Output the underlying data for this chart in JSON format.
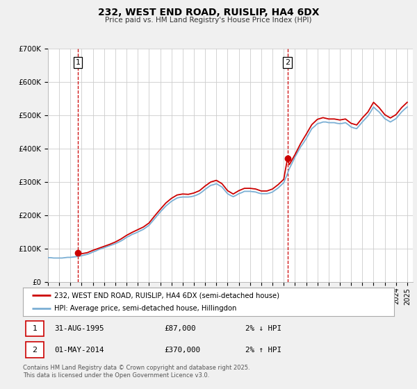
{
  "title": "232, WEST END ROAD, RUISLIP, HA4 6DX",
  "subtitle": "Price paid vs. HM Land Registry's House Price Index (HPI)",
  "legend_line1": "232, WEST END ROAD, RUISLIP, HA4 6DX (semi-detached house)",
  "legend_line2": "HPI: Average price, semi-detached house, Hillingdon",
  "footnote": "Contains HM Land Registry data © Crown copyright and database right 2025.\nThis data is licensed under the Open Government Licence v3.0.",
  "marker1_date": "31-AUG-1995",
  "marker1_price": "£87,000",
  "marker1_hpi": "2% ↓ HPI",
  "marker1_x": 1995.667,
  "marker1_y": 87000,
  "marker2_date": "01-MAY-2014",
  "marker2_price": "£370,000",
  "marker2_hpi": "2% ↑ HPI",
  "marker2_x": 2014.333,
  "marker2_y": 370000,
  "vline1_x": 1995.667,
  "vline2_x": 2014.333,
  "xmin": 1993.0,
  "xmax": 2025.5,
  "ymin": 0,
  "ymax": 700000,
  "yticks": [
    0,
    100000,
    200000,
    300000,
    400000,
    500000,
    600000,
    700000
  ],
  "ytick_labels": [
    "£0",
    "£100K",
    "£200K",
    "£300K",
    "£400K",
    "£500K",
    "£600K",
    "£700K"
  ],
  "property_color": "#cc0000",
  "hpi_color": "#7bafd4",
  "background_color": "#f0f0f0",
  "plot_bg_color": "#ffffff",
  "grid_color": "#cccccc",
  "vline_color": "#cc0000",
  "hpi_years": [
    1993.0,
    1993.25,
    1993.5,
    1993.75,
    1994.0,
    1994.25,
    1994.5,
    1994.75,
    1995.0,
    1995.25,
    1995.5,
    1995.75,
    1996.0,
    1996.25,
    1996.5,
    1996.75,
    1997.0,
    1997.25,
    1997.5,
    1997.75,
    1998.0,
    1998.25,
    1998.5,
    1998.75,
    1999.0,
    1999.25,
    1999.5,
    1999.75,
    2000.0,
    2000.25,
    2000.5,
    2000.75,
    2001.0,
    2001.25,
    2001.5,
    2001.75,
    2002.0,
    2002.25,
    2002.5,
    2002.75,
    2003.0,
    2003.25,
    2003.5,
    2003.75,
    2004.0,
    2004.25,
    2004.5,
    2004.75,
    2005.0,
    2005.25,
    2005.5,
    2005.75,
    2006.0,
    2006.25,
    2006.5,
    2006.75,
    2007.0,
    2007.25,
    2007.5,
    2007.75,
    2008.0,
    2008.25,
    2008.5,
    2008.75,
    2009.0,
    2009.25,
    2009.5,
    2009.75,
    2010.0,
    2010.25,
    2010.5,
    2010.75,
    2011.0,
    2011.25,
    2011.5,
    2011.75,
    2012.0,
    2012.25,
    2012.5,
    2012.75,
    2013.0,
    2013.25,
    2013.5,
    2013.75,
    2014.0,
    2014.25,
    2014.5,
    2014.75,
    2015.0,
    2015.25,
    2015.5,
    2015.75,
    2016.0,
    2016.25,
    2016.5,
    2016.75,
    2017.0,
    2017.25,
    2017.5,
    2017.75,
    2018.0,
    2018.25,
    2018.5,
    2018.75,
    2019.0,
    2019.25,
    2019.5,
    2019.75,
    2020.0,
    2020.25,
    2020.5,
    2020.75,
    2021.0,
    2021.25,
    2021.5,
    2021.75,
    2022.0,
    2022.25,
    2022.5,
    2022.75,
    2023.0,
    2023.25,
    2023.5,
    2023.75,
    2024.0,
    2024.25,
    2024.5,
    2024.75,
    2025.0
  ],
  "hpi_values": [
    73000,
    73000,
    72000,
    72000,
    72000,
    72000,
    73000,
    74000,
    74000,
    75000,
    76000,
    77000,
    79000,
    81000,
    83000,
    86000,
    90000,
    93000,
    97000,
    100000,
    103000,
    106000,
    109000,
    112000,
    115000,
    119000,
    123000,
    128000,
    134000,
    138000,
    143000,
    146000,
    150000,
    154000,
    158000,
    164000,
    170000,
    180000,
    190000,
    200000,
    210000,
    219000,
    228000,
    235000,
    242000,
    247000,
    252000,
    254000,
    255000,
    255000,
    255000,
    256000,
    258000,
    261000,
    265000,
    271000,
    278000,
    284000,
    290000,
    292000,
    295000,
    290000,
    285000,
    275000,
    265000,
    260000,
    256000,
    260000,
    265000,
    268000,
    272000,
    272000,
    272000,
    271000,
    270000,
    267000,
    265000,
    265000,
    265000,
    267000,
    270000,
    276000,
    282000,
    290000,
    298000,
    318000,
    340000,
    357000,
    375000,
    390000,
    405000,
    417000,
    430000,
    445000,
    460000,
    467000,
    475000,
    477000,
    480000,
    480000,
    478000,
    478000,
    478000,
    476000,
    475000,
    476000,
    478000,
    472000,
    465000,
    462000,
    460000,
    470000,
    480000,
    489000,
    498000,
    511000,
    525000,
    517000,
    510000,
    500000,
    490000,
    485000,
    480000,
    485000,
    490000,
    500000,
    510000,
    518000,
    525000
  ],
  "prop_years": [
    1995.667,
    1996.0,
    1996.5,
    1997.0,
    1997.5,
    1998.0,
    1998.5,
    1999.0,
    1999.5,
    2000.0,
    2000.5,
    2001.0,
    2001.5,
    2002.0,
    2002.5,
    2003.0,
    2003.5,
    2004.0,
    2004.5,
    2005.0,
    2005.5,
    2006.0,
    2006.5,
    2007.0,
    2007.5,
    2008.0,
    2008.5,
    2009.0,
    2009.5,
    2010.0,
    2010.5,
    2011.0,
    2011.5,
    2012.0,
    2012.5,
    2013.0,
    2013.5,
    2014.0,
    2014.333,
    2014.5,
    2015.0,
    2015.5,
    2016.0,
    2016.5,
    2017.0,
    2017.5,
    2018.0,
    2018.5,
    2019.0,
    2019.5,
    2020.0,
    2020.5,
    2021.0,
    2021.5,
    2022.0,
    2022.5,
    2023.0,
    2023.5,
    2024.0,
    2024.5,
    2025.0
  ],
  "prop_values": [
    87000,
    85000,
    88000,
    95000,
    101000,
    107000,
    113000,
    120000,
    129000,
    140000,
    149000,
    157000,
    165000,
    177000,
    198000,
    218000,
    237000,
    251000,
    261000,
    264000,
    263000,
    267000,
    274000,
    288000,
    300000,
    305000,
    295000,
    274000,
    264000,
    274000,
    281000,
    281000,
    279000,
    273000,
    273000,
    279000,
    292000,
    308000,
    370000,
    352000,
    382000,
    415000,
    443000,
    472000,
    488000,
    493000,
    489000,
    489000,
    486000,
    489000,
    476000,
    471000,
    492000,
    510000,
    539000,
    523000,
    502000,
    492000,
    502000,
    523000,
    539000
  ],
  "xtick_years": [
    1993,
    1994,
    1995,
    1996,
    1997,
    1998,
    1999,
    2000,
    2001,
    2002,
    2003,
    2004,
    2005,
    2006,
    2007,
    2008,
    2009,
    2010,
    2011,
    2012,
    2013,
    2014,
    2015,
    2016,
    2017,
    2018,
    2019,
    2020,
    2021,
    2022,
    2023,
    2024,
    2025
  ]
}
